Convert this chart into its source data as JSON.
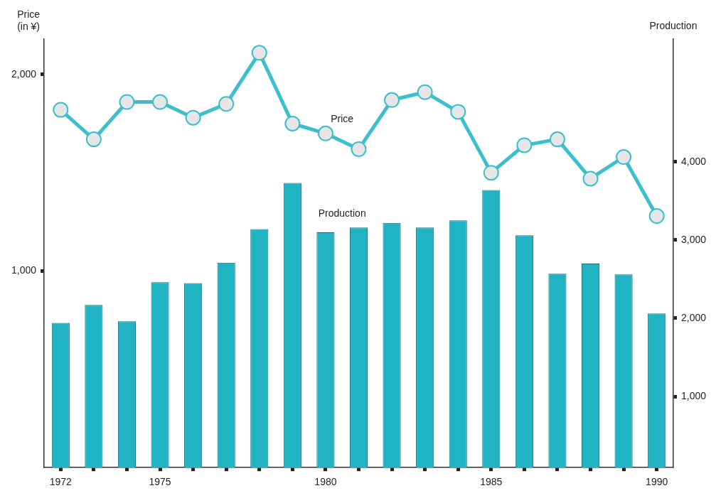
{
  "chart_data": {
    "type": "bar",
    "ylabel": "Price\n(in ¥)",
    "y2label": "Production",
    "categories": [
      "1972",
      null,
      null,
      "1975",
      null,
      null,
      null,
      null,
      "1980",
      null,
      null,
      null,
      null,
      "1985",
      null,
      null,
      null,
      null,
      "1990"
    ],
    "series": [
      {
        "name": "Production",
        "axis": "y2",
        "color": "#1fb3c3",
        "values": [
          1940,
          2170,
          1960,
          2460,
          2450,
          2710,
          3140,
          3730,
          3100,
          3160,
          3220,
          3160,
          3250,
          3640,
          3060,
          2570,
          2700,
          2560,
          2060
        ]
      },
      {
        "name": "Price",
        "type": "line",
        "color": "#3cbfcc",
        "marker": "circle",
        "values": [
          1820,
          1670,
          1860,
          1860,
          1780,
          1850,
          2110,
          1750,
          1700,
          1620,
          1870,
          1910,
          1810,
          1500,
          1640,
          1670,
          1470,
          1580,
          1280
        ]
      }
    ],
    "ylim": [
      0,
      2180
    ],
    "yticks": [
      {
        "value": 1000,
        "label": "1,000"
      },
      {
        "value": 2000,
        "label": "2,000"
      }
    ],
    "y2lim": [
      90,
      5570
    ],
    "y2ticks": [
      {
        "value": 1000,
        "label": "1,000"
      },
      {
        "value": 2000,
        "label": "2,000"
      },
      {
        "value": 3000,
        "label": "3,000"
      },
      {
        "value": 4000,
        "label": "4,000"
      }
    ],
    "grid": false,
    "legend": false
  }
}
